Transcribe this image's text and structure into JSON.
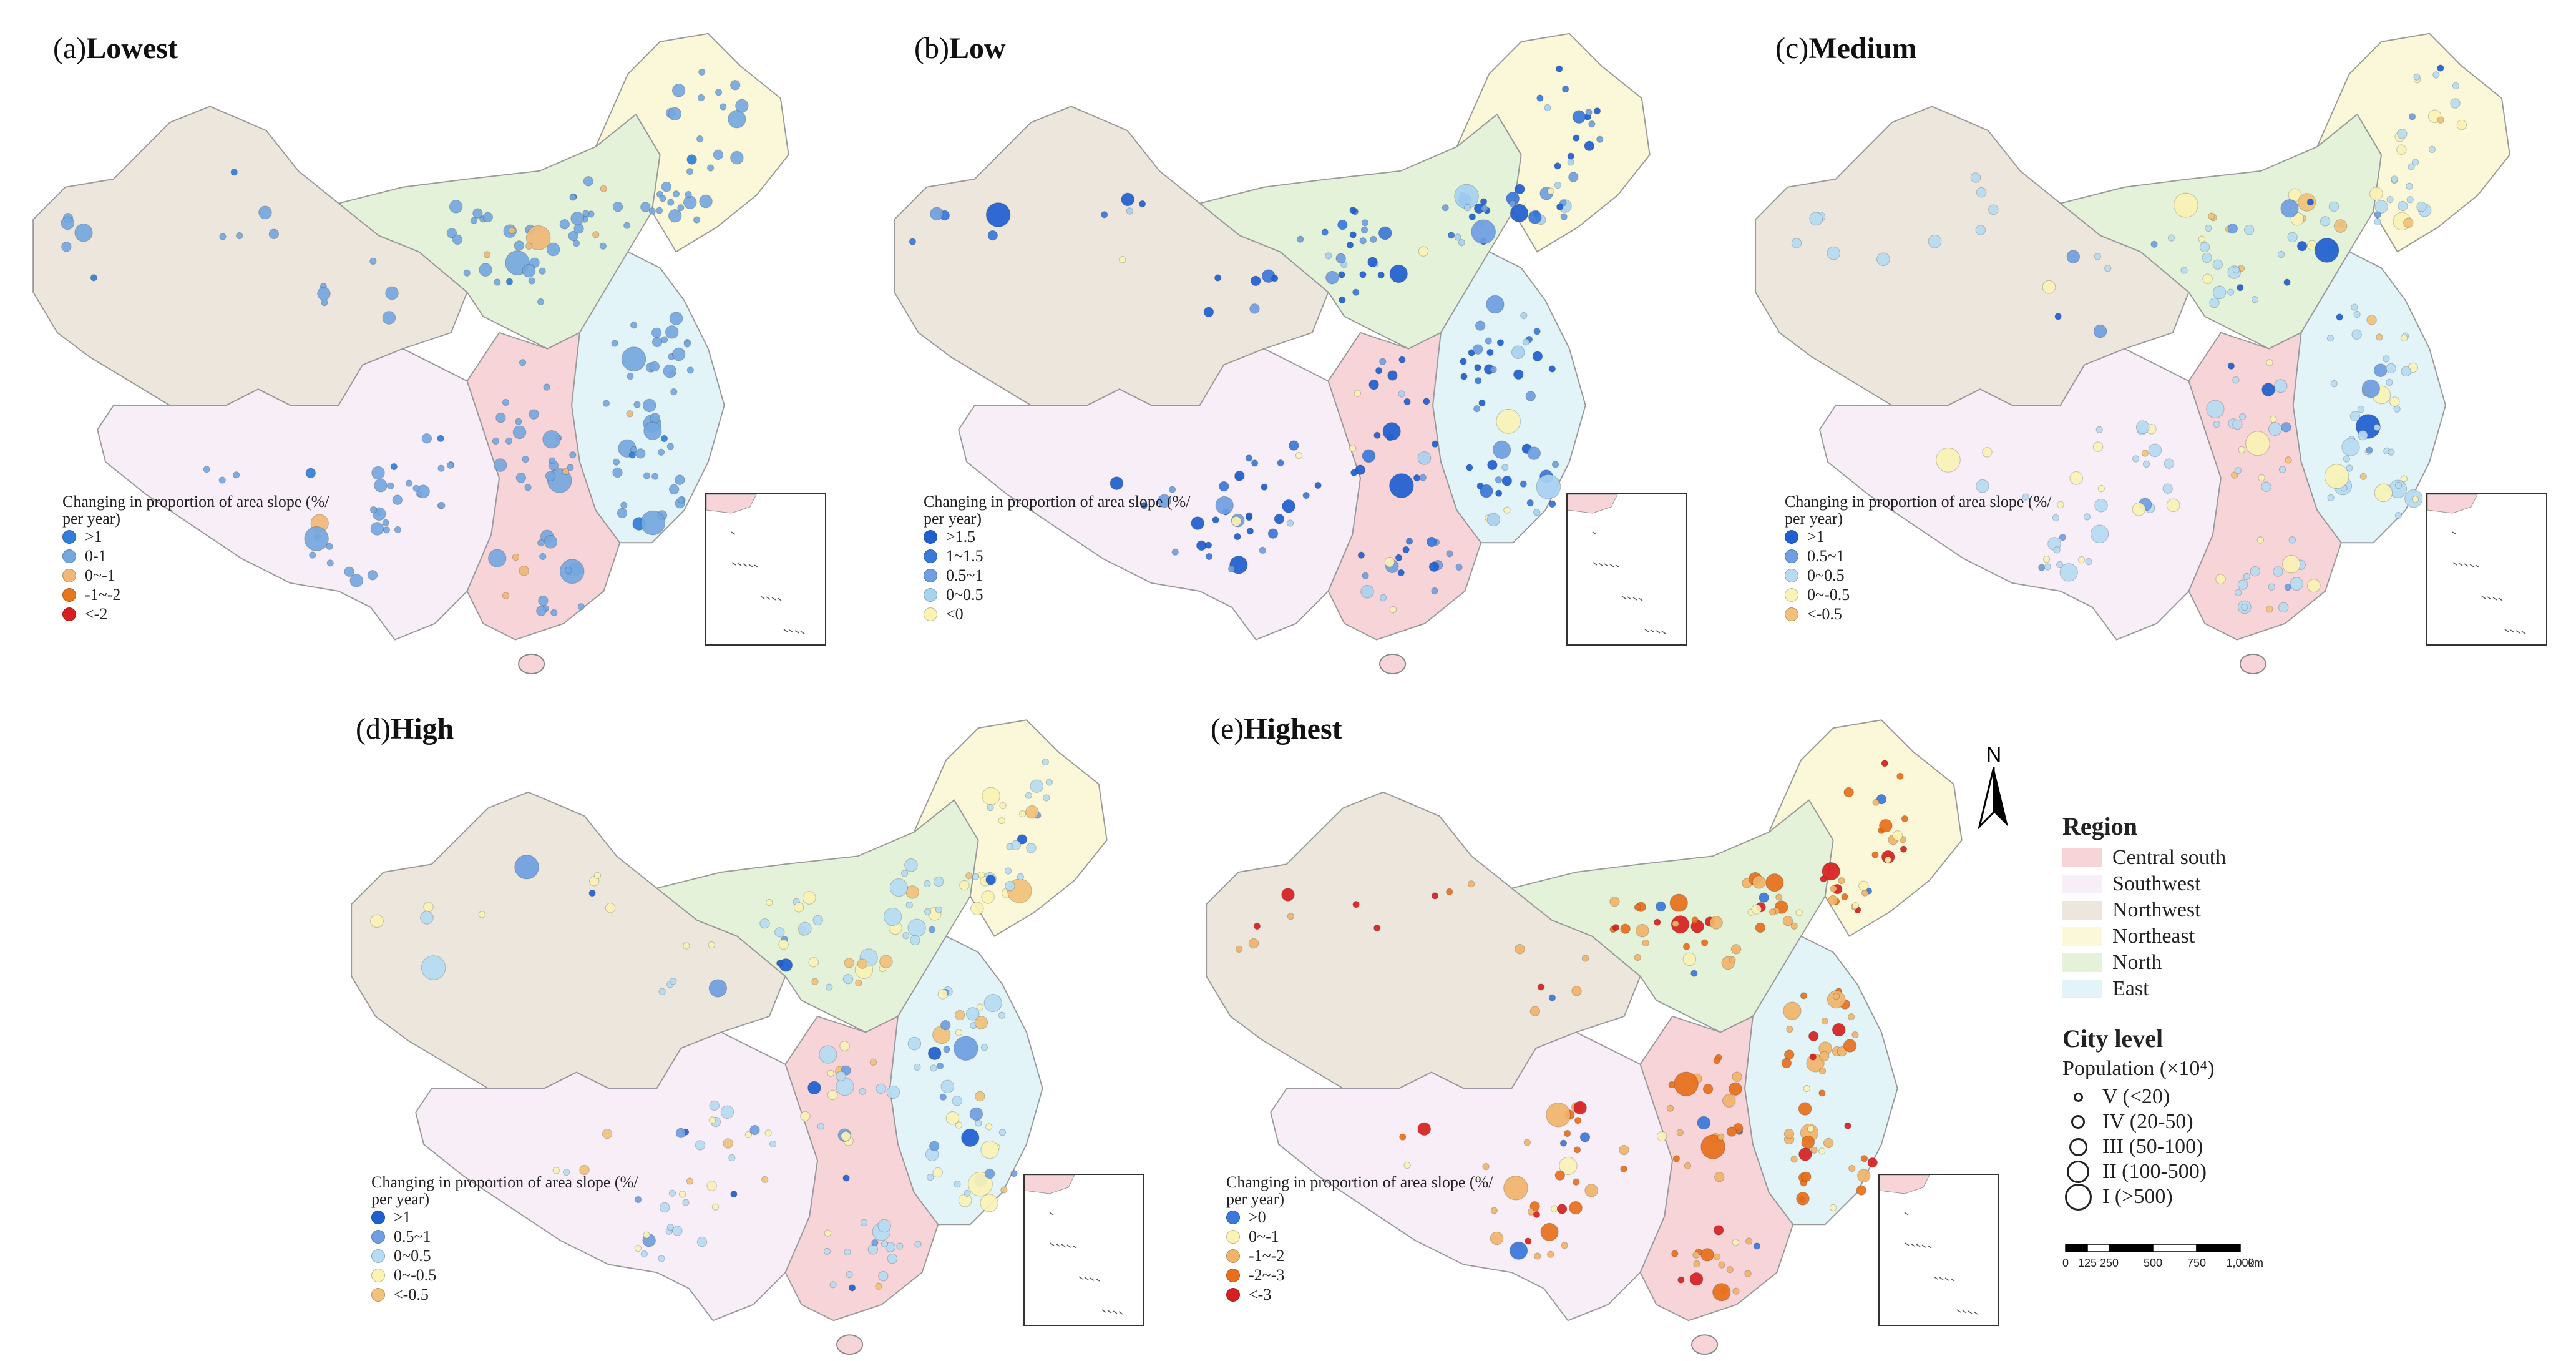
{
  "panels": [
    {
      "id": "a",
      "prefix": "(a)",
      "level": "Lowest",
      "legend_title": "Changing in proportion of area slope (%/ per year)",
      "classes": [
        {
          "label": ">1",
          "color": "#2f7fd8"
        },
        {
          "label": "0-1",
          "color": "#76a8e0"
        },
        {
          "label": "0~-1",
          "color": "#f0b878"
        },
        {
          "label": "-1~-2",
          "color": "#e8761c"
        },
        {
          "label": "<-2",
          "color": "#d81f1f"
        }
      ]
    },
    {
      "id": "b",
      "prefix": "(b)",
      "level": "Low",
      "legend_title": "Changing in proportion of area slope (%/ per year)",
      "classes": [
        {
          "label": ">1.5",
          "color": "#1f5fd0"
        },
        {
          "label": "1~1.5",
          "color": "#3a78db"
        },
        {
          "label": "0.5~1",
          "color": "#6f9fe2"
        },
        {
          "label": "0~0.5",
          "color": "#a8d2f2"
        },
        {
          "label": "<0",
          "color": "#faf3b5"
        }
      ]
    },
    {
      "id": "c",
      "prefix": "(c)",
      "level": "Medium",
      "legend_title": "Changing in proportion of area slope (%/ per year)",
      "classes": [
        {
          "label": ">1",
          "color": "#1f5fd0"
        },
        {
          "label": "0.5~1",
          "color": "#6f9fe2"
        },
        {
          "label": "0~0.5",
          "color": "#b6dcf3"
        },
        {
          "label": "0~-0.5",
          "color": "#faf3b5"
        },
        {
          "label": "<-0.5",
          "color": "#f2c27a"
        }
      ]
    },
    {
      "id": "d",
      "prefix": "(d)",
      "level": "High",
      "legend_title": "Changing in proportion of area slope (%/ per year)",
      "classes": [
        {
          "label": ">1",
          "color": "#1f5fd0"
        },
        {
          "label": "0.5~1",
          "color": "#6f9fe2"
        },
        {
          "label": "0~0.5",
          "color": "#b6dcf3"
        },
        {
          "label": "0~-0.5",
          "color": "#faf3b5"
        },
        {
          "label": "<-0.5",
          "color": "#f2c27a"
        }
      ]
    },
    {
      "id": "e",
      "prefix": "(e)",
      "level": "Highest",
      "legend_title": "Changing in proportion of area slope (%/ per year)",
      "classes": [
        {
          "label": ">0",
          "color": "#3a78db"
        },
        {
          "label": "0~-1",
          "color": "#faf3b5"
        },
        {
          "label": "-1~-2",
          "color": "#f2b46a"
        },
        {
          "label": "-2~-3",
          "color": "#e8701c"
        },
        {
          "label": "<-3",
          "color": "#d81f1f"
        }
      ]
    }
  ],
  "regions_legend": {
    "title": "Region",
    "items": [
      {
        "label": "Central south",
        "color": "#f6d4d8"
      },
      {
        "label": "Southwest",
        "color": "#f7eef7"
      },
      {
        "label": "Northwest",
        "color": "#ece6dd"
      },
      {
        "label": "Northeast",
        "color": "#fbf8d9"
      },
      {
        "label": "North",
        "color": "#e5f2da"
      },
      {
        "label": "East",
        "color": "#e2f4f8"
      }
    ]
  },
  "city_level": {
    "title": "City level",
    "subtitle": "Population (×10⁴)",
    "items": [
      {
        "label": "V (<20)",
        "size": 1
      },
      {
        "label": "IV (20-50)",
        "size": 2
      },
      {
        "label": "III (50-100)",
        "size": 3
      },
      {
        "label": "II (100-500)",
        "size": 4
      },
      {
        "label": "I (>500)",
        "size": 5
      }
    ]
  },
  "north_arrow": "N",
  "scale_bar": {
    "ticks": [
      "0",
      "125",
      "250",
      "500",
      "750",
      "1,000"
    ],
    "unit": "km"
  }
}
